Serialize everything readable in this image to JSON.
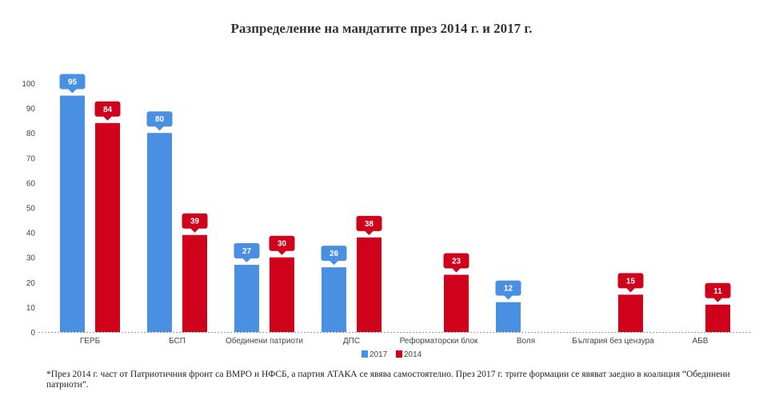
{
  "chart_data": {
    "type": "bar",
    "title": "Разпределение на мандатите през 2014 г. и 2017 г.",
    "categories": [
      "ГЕРБ",
      "БСП",
      "Обединени патриоти",
      "ДПС",
      "Реформаторски блок",
      "Воля",
      "България без цензура",
      "АБВ"
    ],
    "series": [
      {
        "name": "2017",
        "color": "#4a90e2",
        "values": [
          95,
          80,
          27,
          26,
          null,
          12,
          null,
          null
        ]
      },
      {
        "name": "2014",
        "color": "#d0021b",
        "values": [
          84,
          39,
          30,
          38,
          23,
          null,
          15,
          11
        ]
      }
    ],
    "ylim": [
      0,
      100
    ],
    "yticks": [
      0,
      10,
      20,
      30,
      40,
      50,
      60,
      70,
      80,
      90,
      100
    ],
    "grid": false,
    "legend": "bottom",
    "data_labels": true
  },
  "footnote": "*През 2014 г. част от Патриотичния фронт са ВМРО и НФСБ, а партия АТАКА се явява самостоятелно. През 2017 г. трите формации се явяват заедно в коалиция “Обединени патриоти”."
}
